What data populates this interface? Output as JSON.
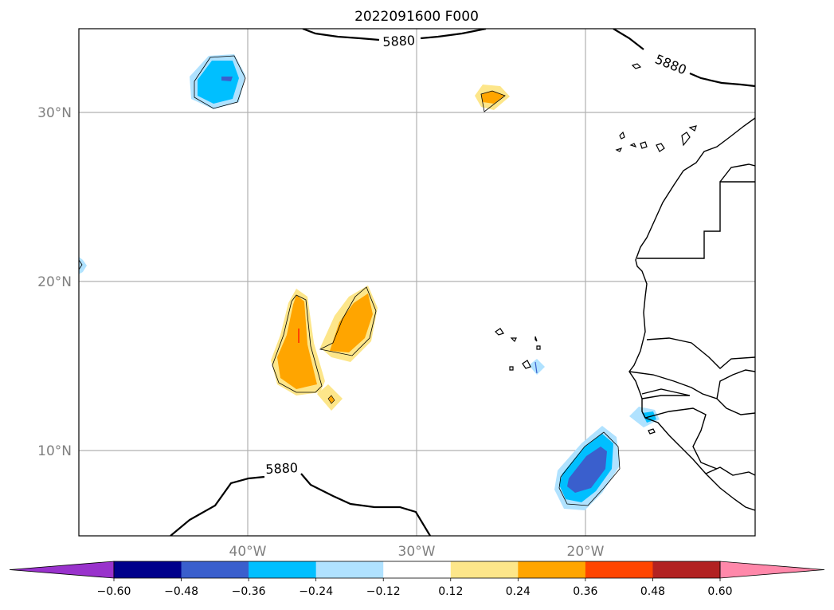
{
  "title": "2022091600 F000",
  "map": {
    "lat_labels": [
      "30°N",
      "20°N",
      "10°N"
    ],
    "lon_labels": [
      "40°W",
      "30°W",
      "20°W"
    ],
    "contour_labels": [
      "5880",
      "5880",
      "5880"
    ],
    "gridlines": true,
    "extent": {
      "lon_min": -50,
      "lon_max": -10,
      "lat_min": 5,
      "lat_max": 35
    }
  },
  "colorbar": {
    "tick_labels": [
      "−0.60",
      "−0.48",
      "−0.36",
      "−0.24",
      "−0.12",
      "0.12",
      "0.24",
      "0.36",
      "0.48",
      "0.60"
    ],
    "colors": [
      "#9932cc",
      "#00008b",
      "#3a5fcd",
      "#00bfff",
      "#b0e2ff",
      "#ffffff",
      "#fde68a",
      "#ffa500",
      "#ff4500",
      "#b22222",
      "#ff88aa"
    ],
    "extend": "both"
  }
}
